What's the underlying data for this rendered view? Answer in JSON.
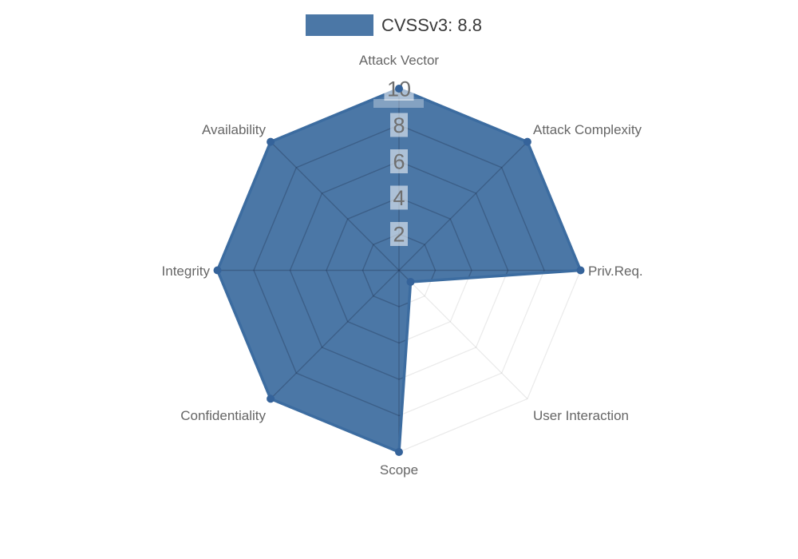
{
  "page": {
    "background_color": "#ffffff"
  },
  "legend": {
    "label": "CVSSv3: 8.8",
    "swatch_color": "#4b77a6"
  },
  "chart_data": {
    "type": "radar",
    "title": "CVSSv3: 8.8",
    "categories": [
      "Attack Vector",
      "Attack Complexity",
      "Priv.Req.",
      "User Interaction",
      "Scope",
      "Confidentiality",
      "Integrity",
      "Availability"
    ],
    "series": [
      {
        "name": "CVSSv3: 8.8",
        "values": [
          10,
          10,
          10,
          0.9,
          10,
          10,
          10,
          10
        ]
      }
    ],
    "scale": {
      "min": 0,
      "max": 10,
      "tick_step": 2,
      "ticks": [
        2,
        4,
        6,
        8,
        10
      ]
    },
    "grid": true,
    "legend_position": "top",
    "colors": {
      "fill": "#4b77a6",
      "border": "#3c6ca0",
      "marker": "#35639a",
      "grid_inside": "rgba(25,40,65,0.30)",
      "grid_outside": "rgba(125,125,125,0.16)",
      "tick_text": "#6f6f6f",
      "tick_backdrop": "rgba(255,255,255,0.55)",
      "label_text": "#666666",
      "legend_text": "#3a3a3a"
    }
  }
}
